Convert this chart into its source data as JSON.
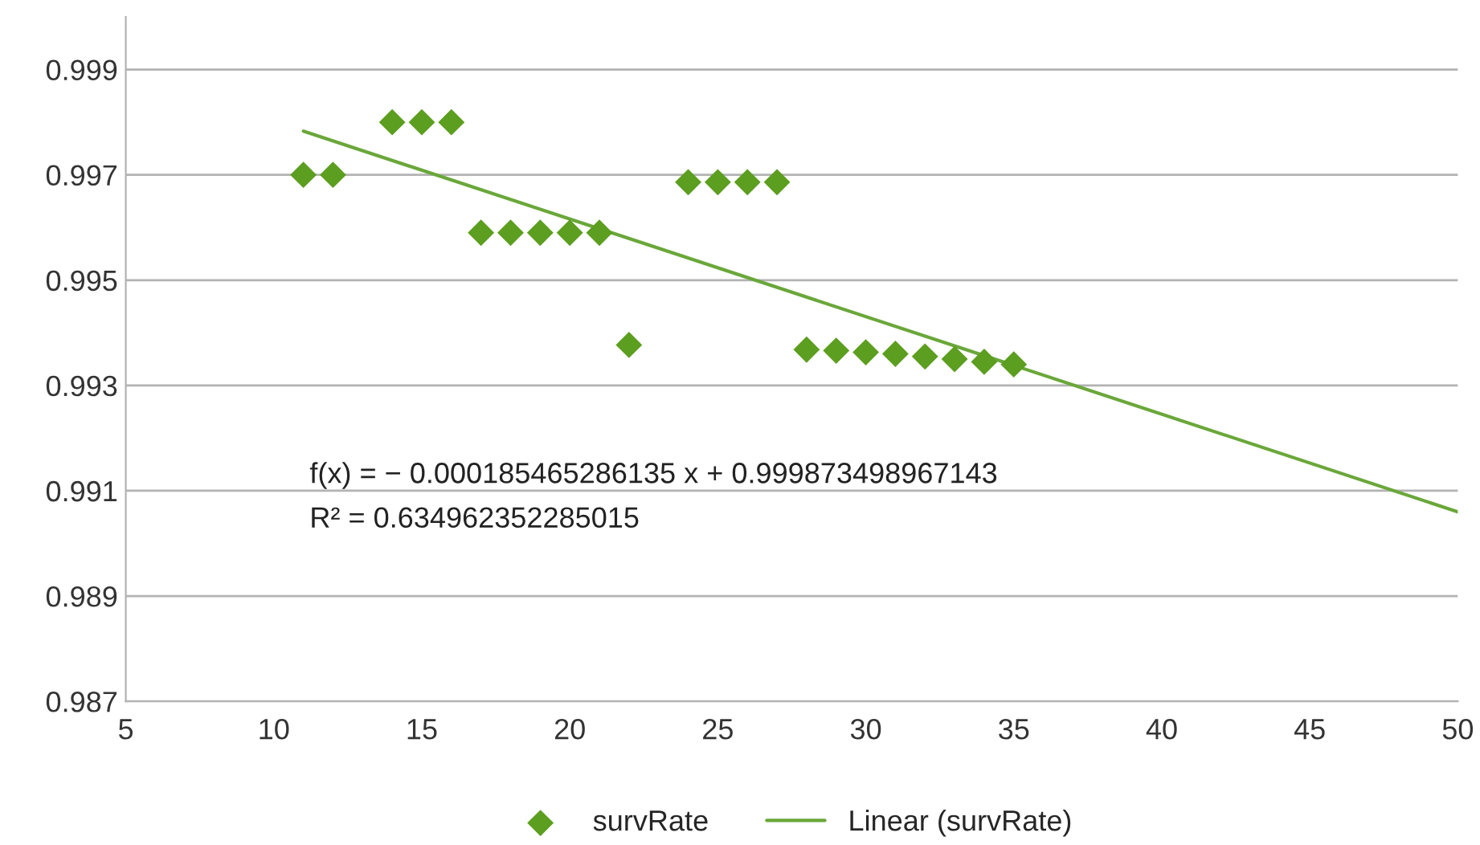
{
  "chart_data": {
    "type": "scatter",
    "x": [
      11,
      12,
      14,
      15,
      16,
      17,
      18,
      19,
      20,
      21,
      22,
      24,
      25,
      26,
      27,
      28,
      29,
      30,
      31,
      32,
      33,
      34,
      35
    ],
    "series": [
      {
        "name": "survRate",
        "color": "#5c9e1f",
        "marker": "diamond",
        "values": [
          0.997,
          0.997,
          0.998,
          0.998,
          0.998,
          0.9959,
          0.9959,
          0.9959,
          0.9959,
          0.9959,
          0.99377,
          0.99686,
          0.99686,
          0.99686,
          0.99686,
          0.99368,
          0.99366,
          0.99363,
          0.9936,
          0.99355,
          0.9935,
          0.99345,
          0.9934
        ]
      },
      {
        "name": "Linear (survRate)",
        "type": "line",
        "color": "#6aa73a",
        "line_style": "solid",
        "x": [
          11,
          50
        ],
        "values": [
          0.99783,
          0.9906
        ]
      }
    ],
    "annotations": [
      "f(x) = − 0.000185465286135 x + 0.999873498967143",
      "R² = 0.634962352285015"
    ],
    "xlim": [
      5,
      50
    ],
    "xticks": [
      5,
      10,
      15,
      20,
      25,
      30,
      35,
      40,
      45,
      50
    ],
    "ylim": [
      0.987,
      1.0
    ],
    "yticks": [
      0.987,
      0.989,
      0.991,
      0.993,
      0.995,
      0.997,
      0.999
    ],
    "grid": "y",
    "legend": "bottom"
  }
}
